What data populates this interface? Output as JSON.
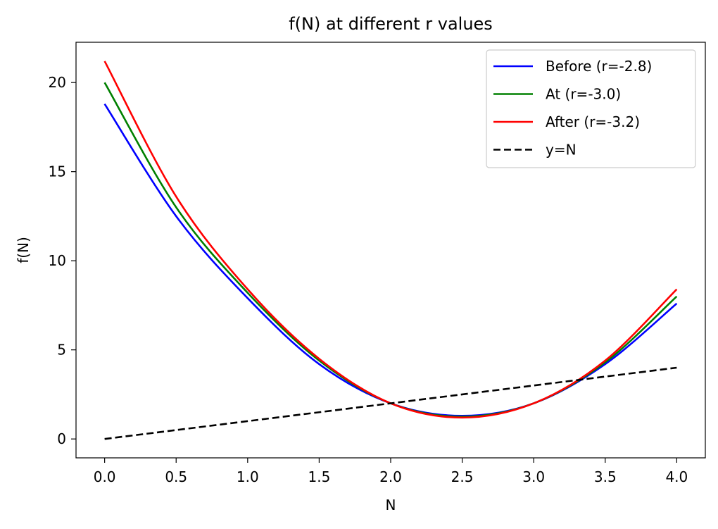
{
  "chart_data": {
    "type": "line",
    "title": "f(N) at different r values",
    "xlabel": "N",
    "ylabel": "f(N)",
    "xlim": [
      -0.2,
      4.2
    ],
    "ylim": [
      -1.06,
      22.26
    ],
    "xticks": [
      0.0,
      0.5,
      1.0,
      1.5,
      2.0,
      2.5,
      3.0,
      3.5,
      4.0
    ],
    "xtick_labels": [
      "0.0",
      "0.5",
      "1.0",
      "1.5",
      "2.0",
      "2.5",
      "3.0",
      "3.5",
      "4.0"
    ],
    "yticks": [
      0,
      5,
      10,
      15,
      20
    ],
    "ytick_labels": [
      "0",
      "5",
      "10",
      "15",
      "20"
    ],
    "grid": false,
    "legend_position": "top-right",
    "series": [
      {
        "name": "Before (r=-2.8)",
        "color": "#0000ff",
        "style": "solid",
        "x": [
          0.0,
          0.5,
          1.0,
          1.5,
          2.0,
          2.5,
          3.0,
          3.5,
          4.0
        ],
        "y": [
          18.8,
          12.5,
          7.9,
          4.2,
          2.0,
          1.3,
          2.0,
          4.2,
          7.6
        ]
      },
      {
        "name": "At (r=-3.0)",
        "color": "#008000",
        "style": "solid",
        "x": [
          0.0,
          0.5,
          1.0,
          1.5,
          2.0,
          2.5,
          3.0,
          3.5,
          4.0
        ],
        "y": [
          20.0,
          13.0,
          8.2,
          4.4,
          2.0,
          1.25,
          2.0,
          4.3,
          8.0
        ]
      },
      {
        "name": "After (r=-3.2)",
        "color": "#ff0000",
        "style": "solid",
        "x": [
          0.0,
          0.5,
          1.0,
          1.5,
          2.0,
          2.5,
          3.0,
          3.5,
          4.0
        ],
        "y": [
          21.2,
          13.6,
          8.4,
          4.5,
          2.0,
          1.2,
          2.0,
          4.4,
          8.4
        ]
      },
      {
        "name": "y=N",
        "color": "#000000",
        "style": "dashed",
        "x": [
          0.0,
          4.0
        ],
        "y": [
          0.0,
          4.0
        ]
      }
    ]
  }
}
